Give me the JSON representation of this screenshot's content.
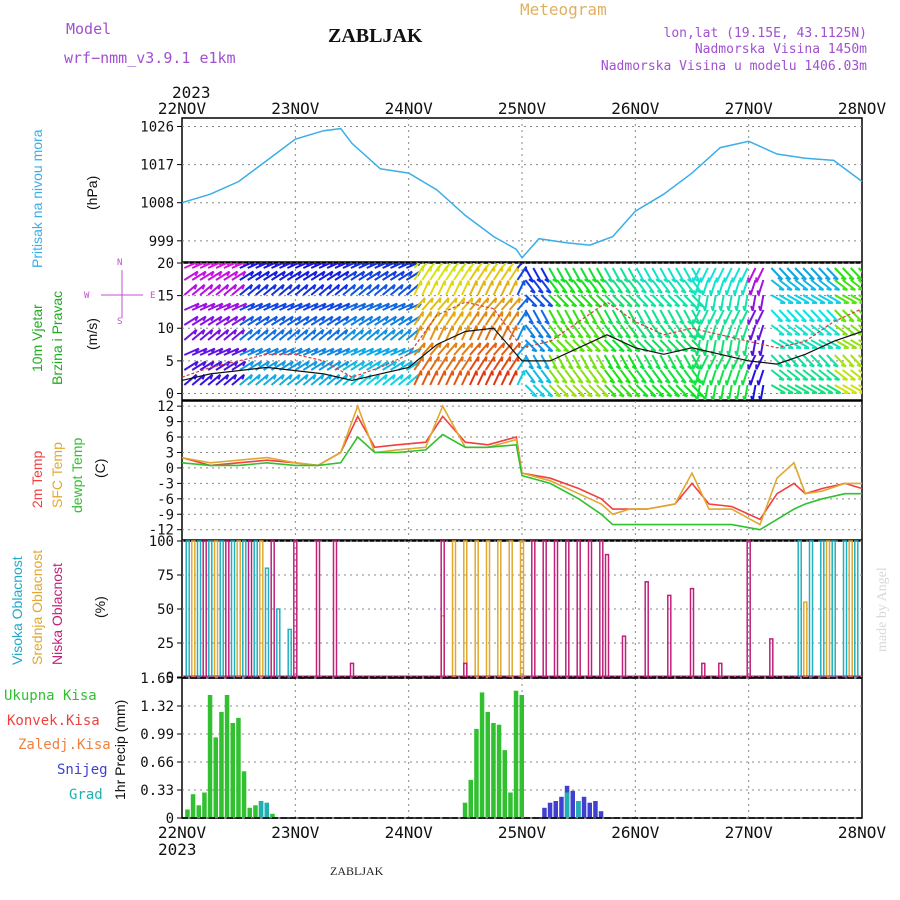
{
  "header": {
    "model_label": "Model",
    "model_name": "wrf−nmm_v3.9.1  e1km",
    "station": "ZABLJAK",
    "product": "Meteogram",
    "lonlat": "lon,lat (19.15E, 43.1125N)",
    "elevation": "Nadmorska Visina 1450m",
    "model_elevation": "Nadmorska Visina u modelu 1406.03m",
    "year_top": "2023",
    "year_bottom": "2023",
    "footer_station": "ZABLJAK",
    "watermark": "made by Angel"
  },
  "colors": {
    "pressure": "#3aaee8",
    "t2m": "#f04040",
    "sfc": "#e0a830",
    "dew": "#30c030",
    "wind_green": "#22aa22",
    "cloud_high": "#20b0c0",
    "cloud_mid": "#e0a830",
    "cloud_low": "#c0207a",
    "precip_total": "#30c030",
    "precip_conv": "#f04040",
    "precip_frz": "#f08040",
    "precip_snow": "#4040d0",
    "precip_hail": "#20b0b0",
    "compass": "#c050d0"
  },
  "axis": {
    "dates": [
      "22NOV",
      "23NOV",
      "24NOV",
      "25NOV",
      "26NOV",
      "27NOV",
      "28NOV"
    ]
  },
  "panels": {
    "pressure": {
      "label": "Pritisak na nivou mora",
      "unit": "(hPa)"
    },
    "wind": {
      "label1": "10m Vjetar",
      "label2": "Brzina i Pravac",
      "unit": "(m/s)",
      "compass": [
        "N",
        "S",
        "W",
        "E"
      ]
    },
    "temp": {
      "label_t2m": "2m Temp",
      "label_sfc": "SFC Temp",
      "label_dew": "dewpt Temp",
      "unit": "(C)"
    },
    "cloud": {
      "label_high": "Visoka Oblacnost",
      "label_mid": "Srednja Oblacnost",
      "label_low": "Niska Oblacnost",
      "unit": "(%)"
    },
    "precip": {
      "unit": "1hr Precip (mm)",
      "legend": [
        "Ukupna Kisa",
        "Konvek.Kisa",
        "Zaledj.Kisa",
        "Snijeg",
        "Grad"
      ]
    }
  },
  "chart_data": [
    {
      "type": "line",
      "name": "pressure",
      "ylim": [
        994,
        1028
      ],
      "yticks": [
        999,
        1008,
        1017,
        1026
      ],
      "x": [
        0,
        0.25,
        0.5,
        0.75,
        1,
        1.25,
        1.4,
        1.5,
        1.75,
        2,
        2.25,
        2.5,
        2.75,
        2.95,
        3,
        3.15,
        3.4,
        3.6,
        3.8,
        4,
        4.25,
        4.5,
        4.75,
        5,
        5.25,
        5.5,
        5.75,
        6
      ],
      "series": [
        {
          "values": [
            1008,
            1010,
            1013,
            1018,
            1023,
            1025,
            1025.5,
            1022,
            1016,
            1015,
            1011,
            1005,
            1000,
            997,
            995,
            999.5,
            998.5,
            998,
            1000,
            1006,
            1010,
            1015,
            1021,
            1022.5,
            1019.5,
            1018.5,
            1018,
            1013
          ]
        }
      ]
    },
    {
      "type": "line",
      "name": "wind",
      "ylim": [
        -1,
        20
      ],
      "yticks": [
        0,
        5,
        10,
        15,
        20
      ],
      "x": [
        0,
        0.25,
        0.5,
        0.75,
        1,
        1.25,
        1.5,
        1.75,
        2,
        2.25,
        2.5,
        2.75,
        3,
        3.25,
        3.5,
        3.75,
        4,
        4.25,
        4.5,
        4.75,
        5,
        5.25,
        5.5,
        5.75,
        6
      ],
      "series": [
        {
          "values": [
            2,
            3,
            3.5,
            4,
            3.5,
            3,
            2,
            3,
            4,
            7.5,
            9.5,
            10,
            5,
            5,
            7,
            9,
            7,
            6,
            7,
            6,
            5,
            4.5,
            6,
            8,
            9.5
          ]
        },
        {
          "values": [
            2.5,
            4,
            5,
            6,
            6,
            5,
            2.5,
            4,
            6,
            12,
            14,
            13,
            7,
            8,
            11,
            14,
            11,
            9,
            10,
            9,
            8,
            7,
            8,
            11,
            13
          ]
        }
      ]
    },
    {
      "type": "line",
      "name": "temperature",
      "ylim": [
        -14,
        13
      ],
      "yticks": [
        -12,
        -9,
        -6,
        -3,
        0,
        3,
        6,
        9,
        12
      ],
      "x": [
        0,
        0.25,
        0.5,
        0.75,
        1,
        1.2,
        1.4,
        1.55,
        1.7,
        1.9,
        2.15,
        2.3,
        2.5,
        2.7,
        2.95,
        3,
        3.25,
        3.5,
        3.7,
        3.8,
        3.95,
        4.1,
        4.35,
        4.5,
        4.65,
        4.85,
        5.1,
        5.25,
        5.4,
        5.5,
        5.65,
        5.85,
        6
      ],
      "series": [
        {
          "values": [
            2,
            0.5,
            1,
            1.5,
            1,
            0.5,
            3,
            10,
            4,
            4.5,
            5,
            10,
            5,
            4.5,
            6,
            -1,
            -2,
            -4,
            -6,
            -8,
            -8,
            -8,
            -7,
            -3,
            -7,
            -7.5,
            -10,
            -5,
            -3,
            -5,
            -4,
            -3,
            -4
          ]
        },
        {
          "values": [
            2,
            1,
            1.5,
            2,
            1,
            0.5,
            3,
            12,
            3,
            3.5,
            4,
            12,
            4,
            4,
            5.5,
            -1,
            -2.5,
            -5,
            -7,
            -9,
            -8,
            -8,
            -7,
            -1,
            -8,
            -8,
            -11,
            -2,
            1,
            -5,
            -4.5,
            -3,
            -3
          ]
        },
        {
          "values": [
            1,
            0.5,
            0.5,
            1,
            0.5,
            0.5,
            1,
            6,
            3,
            3,
            3.5,
            6.5,
            4,
            4,
            4.5,
            -1.5,
            -3,
            -6,
            -9,
            -11,
            -11,
            -11,
            -11,
            -11,
            -11,
            -11,
            -12,
            -10,
            -8,
            -7,
            -6,
            -5,
            -5
          ]
        }
      ]
    },
    {
      "type": "bar",
      "name": "cloud_cover",
      "ylim": [
        0,
        100
      ],
      "yticks": [
        0,
        25,
        50,
        75,
        100
      ],
      "series": [
        {
          "name": "high",
          "x": [
            0.05,
            0.15,
            0.25,
            0.35,
            0.45,
            0.55,
            0.65,
            0.75,
            0.85,
            0.95,
            5.45,
            5.55,
            5.65,
            5.75,
            5.85,
            5.95
          ],
          "values": [
            100,
            100,
            100,
            100,
            100,
            100,
            100,
            80,
            50,
            35,
            100,
            100,
            100,
            100,
            100,
            100
          ]
        },
        {
          "name": "mid",
          "x": [
            0.1,
            0.3,
            0.5,
            0.7,
            2.3,
            2.4,
            2.5,
            2.6,
            2.7,
            2.8,
            2.9,
            3.0,
            5.5,
            5.7,
            5.9
          ],
          "values": [
            100,
            100,
            100,
            100,
            45,
            100,
            100,
            100,
            100,
            100,
            100,
            100,
            55,
            100,
            100
          ]
        },
        {
          "name": "low",
          "x": [
            0.2,
            0.4,
            0.6,
            0.8,
            1.0,
            1.2,
            1.35,
            1.5,
            2.3,
            2.5,
            3.1,
            3.2,
            3.3,
            3.4,
            3.5,
            3.6,
            3.7,
            3.75,
            3.9,
            4.1,
            4.3,
            4.5,
            4.6,
            4.75,
            5.0,
            5.2
          ],
          "values": [
            100,
            100,
            100,
            100,
            100,
            100,
            100,
            10,
            100,
            10,
            100,
            100,
            100,
            100,
            100,
            100,
            100,
            90,
            30,
            70,
            60,
            65,
            10,
            10,
            100,
            28
          ]
        }
      ]
    },
    {
      "type": "bar",
      "name": "precipitation",
      "ylim": [
        0,
        1.65
      ],
      "yticks": [
        0,
        0.33,
        0.66,
        0.99,
        1.32,
        1.65
      ],
      "series": [
        {
          "name": "total",
          "x": [
            0.05,
            0.1,
            0.15,
            0.2,
            0.25,
            0.3,
            0.35,
            0.4,
            0.45,
            0.5,
            0.55,
            0.6,
            0.65,
            0.7,
            0.75,
            0.8,
            2.5,
            2.55,
            2.6,
            2.65,
            2.7,
            2.75,
            2.8,
            2.85,
            2.9,
            2.95,
            3.0
          ],
          "values": [
            0.1,
            0.28,
            0.15,
            0.3,
            1.45,
            0.95,
            1.25,
            1.45,
            1.12,
            1.18,
            0.55,
            0.12,
            0.15,
            0.2,
            0.15,
            0.05,
            0.18,
            0.45,
            1.05,
            1.48,
            1.25,
            1.12,
            1.1,
            0.8,
            0.3,
            1.5,
            1.45
          ]
        },
        {
          "name": "snow",
          "x": [
            3.2,
            3.25,
            3.3,
            3.35,
            3.4,
            3.45,
            3.5,
            3.55,
            3.6,
            3.65,
            3.7
          ],
          "values": [
            0.12,
            0.18,
            0.2,
            0.25,
            0.38,
            0.32,
            0.2,
            0.25,
            0.18,
            0.2,
            0.08
          ]
        },
        {
          "name": "hail",
          "x": [
            0.7,
            0.75,
            3.4,
            3.5
          ],
          "values": [
            0.2,
            0.18,
            0.3,
            0.2
          ]
        }
      ]
    }
  ]
}
